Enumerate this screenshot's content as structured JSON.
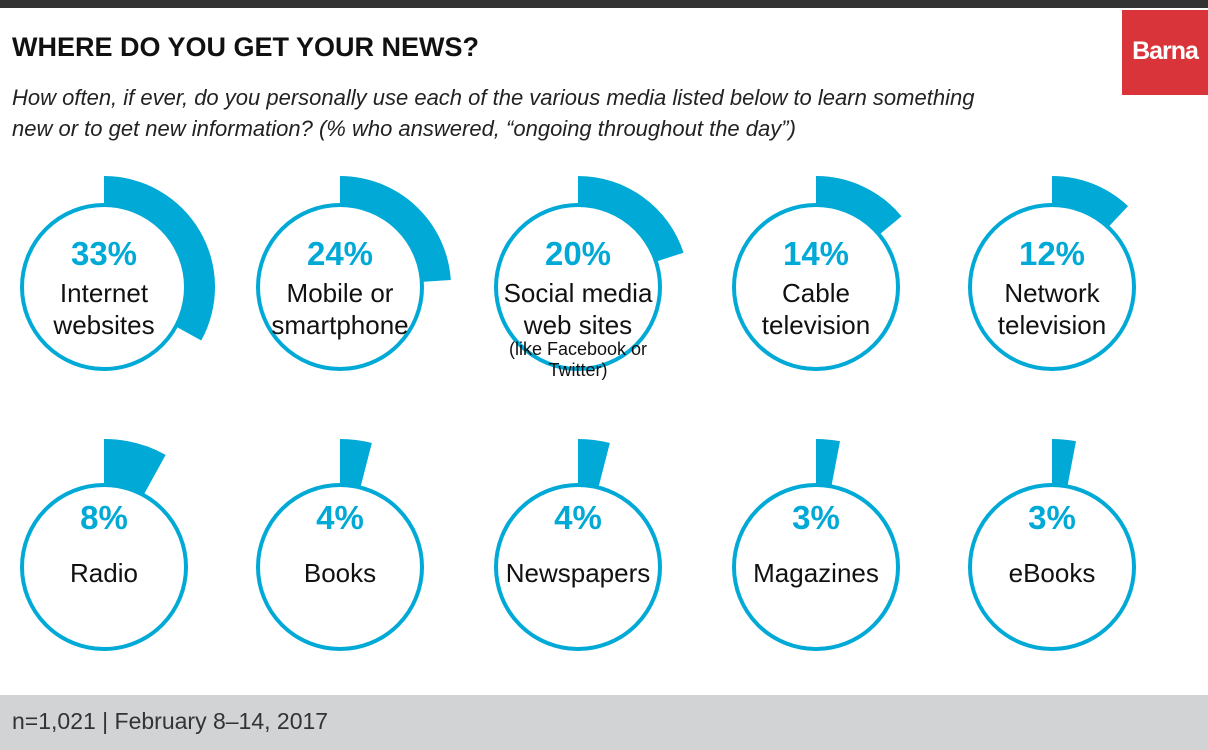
{
  "chart_data": {
    "type": "radial",
    "title": "WHERE DO YOU GET YOUR NEWS?",
    "subtitle": "How often, if ever, do you personally use each of the various media listed below to learn something new or to get new information? (% who answered, “ongoing throughout the day”)",
    "categories": [
      "Internet websites",
      "Mobile or smartphone",
      "Social media web sites",
      "Cable television",
      "Network television",
      "Radio",
      "Books",
      "Newspapers",
      "Magazines",
      "eBooks"
    ],
    "values": [
      33,
      24,
      20,
      14,
      12,
      8,
      4,
      4,
      3,
      3
    ],
    "value_labels": [
      "33%",
      "24%",
      "20%",
      "14%",
      "12%",
      "8%",
      "4%",
      "4%",
      "3%",
      "3%"
    ],
    "annotation": "(like Facebook or Twitter)",
    "ylim": [
      0,
      100
    ],
    "color": "#00a9d6"
  },
  "logo": "Barna",
  "footer": "n=1,021 | February 8–14, 2017"
}
